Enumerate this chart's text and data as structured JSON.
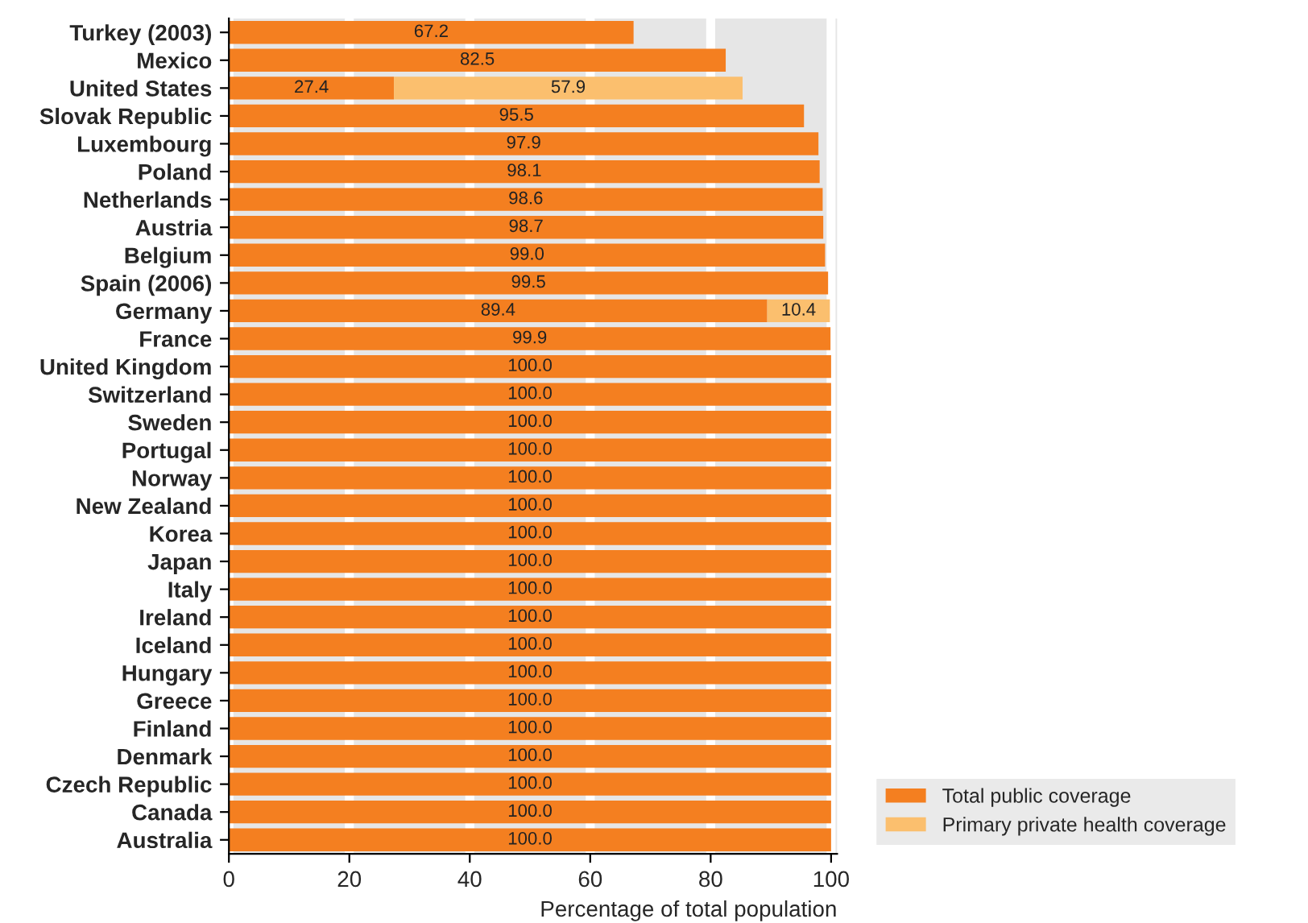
{
  "chart_data": {
    "type": "bar",
    "orientation": "horizontal",
    "stacked": true,
    "xlabel": "Percentage of total population",
    "categories": [
      "Turkey (2003)",
      "Mexico",
      "United States",
      "Slovak Republic",
      "Luxembourg",
      "Poland",
      "Netherlands",
      "Austria",
      "Belgium",
      "Spain (2006)",
      "Germany",
      "France",
      "United Kingdom",
      "Switzerland",
      "Sweden",
      "Portugal",
      "Norway",
      "New Zealand",
      "Korea",
      "Japan",
      "Italy",
      "Ireland",
      "Iceland",
      "Hungary",
      "Greece",
      "Finland",
      "Denmark",
      "Czech Republic",
      "Canada",
      "Australia"
    ],
    "series": [
      {
        "name": "Total public coverage",
        "color": "#f47f20",
        "values": [
          67.2,
          82.5,
          27.4,
          95.5,
          97.9,
          98.1,
          98.6,
          98.7,
          99.0,
          99.5,
          89.4,
          99.9,
          100,
          100,
          100,
          100,
          100,
          100,
          100,
          100,
          100,
          100,
          100,
          100,
          100,
          100,
          100,
          100,
          100,
          100
        ],
        "value_labels": [
          "67.2",
          "82.5",
          "27.4",
          "95.5",
          "97.9",
          "98.1",
          "98.6",
          "98.7",
          "99.0",
          "99.5",
          "89.4",
          "99.9",
          "100.0",
          "100.0",
          "100.0",
          "100.0",
          "100.0",
          "100.0",
          "100.0",
          "100.0",
          "100.0",
          "100.0",
          "100.0",
          "100.0",
          "100.0",
          "100.0",
          "100.0",
          "100.0",
          "100.0",
          "100.0"
        ]
      },
      {
        "name": "Primary private health coverage",
        "color": "#fbbf6e",
        "values": [
          null,
          null,
          57.9,
          null,
          null,
          null,
          null,
          null,
          null,
          null,
          10.4,
          null,
          null,
          null,
          null,
          null,
          null,
          null,
          null,
          null,
          null,
          null,
          null,
          null,
          null,
          null,
          null,
          null,
          null,
          null
        ],
        "value_labels": [
          null,
          null,
          "57.9",
          null,
          null,
          null,
          null,
          null,
          null,
          null,
          "10.4",
          null,
          null,
          null,
          null,
          null,
          null,
          null,
          null,
          null,
          null,
          null,
          null,
          null,
          null,
          null,
          null,
          null,
          null,
          null
        ]
      }
    ],
    "xlim": [
      0,
      101
    ],
    "xticks": [
      0,
      20,
      40,
      60,
      80,
      100
    ],
    "grid": "x",
    "legend": "bottom right"
  }
}
